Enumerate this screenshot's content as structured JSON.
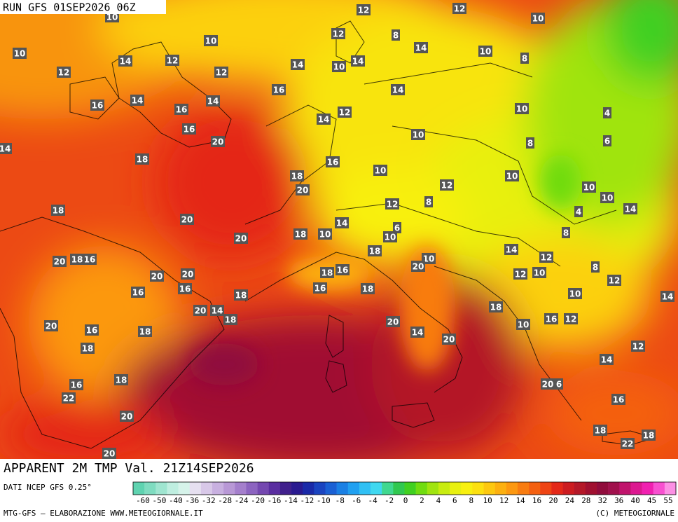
{
  "header": {
    "run": "RUN GFS 01SEP2026 06Z"
  },
  "title": "APPARENT 2M TMP Val. 21Z14SEP2026",
  "footer": {
    "source": "DATI NCEP GFS 0.25°",
    "credit": "MTG-GFS — ELABORAZIONE WWW.METEOGIORNALE.IT",
    "copyright": "(C) METEOGIORNALE"
  },
  "legend": {
    "labels": [
      -60,
      -50,
      -40,
      -36,
      -32,
      -28,
      -24,
      -20,
      -16,
      -14,
      -12,
      -10,
      -8,
      -6,
      -4,
      -2,
      0,
      2,
      4,
      6,
      8,
      10,
      12,
      14,
      16,
      20,
      24,
      28,
      32,
      36,
      40,
      45,
      55
    ],
    "colors": [
      "#5fd3b0",
      "#7fdcc0",
      "#9fe5d0",
      "#bfeee0",
      "#d6f3ea",
      "#e6e0f0",
      "#d8c8e8",
      "#c8b0e0",
      "#b898d6",
      "#a47fcc",
      "#8c64c0",
      "#7448b0",
      "#5a2ea0",
      "#40208c",
      "#2a1a90",
      "#1a2aa8",
      "#1a44c0",
      "#1a60d4",
      "#1a80e4",
      "#20a0f0",
      "#30c0f4",
      "#40d8f0",
      "#40d890",
      "#30c850",
      "#40d020",
      "#70dc10",
      "#a0e410",
      "#c8ec10",
      "#e8f010",
      "#f8f010",
      "#fce010",
      "#fcc810",
      "#fcb010",
      "#fc9810",
      "#f87c10",
      "#f46010",
      "#ee4414",
      "#e42818",
      "#cc1c20",
      "#b41828",
      "#a01030",
      "#900c3c",
      "#a0104c",
      "#c0146c",
      "#dc1890",
      "#f020b0",
      "#f850d0",
      "#fc90e4"
    ]
  },
  "map_labels": [
    10,
    12,
    12,
    10,
    10,
    10,
    12,
    8,
    14,
    10,
    8,
    12,
    14,
    12,
    12,
    14,
    10,
    14,
    16,
    14,
    14,
    16,
    16,
    14,
    10,
    4,
    12,
    14,
    16,
    10,
    8,
    6,
    14,
    20,
    18,
    16,
    10,
    10,
    18,
    20,
    12,
    8,
    10,
    10,
    14,
    18,
    20,
    12,
    4,
    14,
    18,
    10,
    20,
    6,
    10,
    8,
    14,
    12,
    20,
    18,
    16,
    20,
    20,
    18,
    16,
    18,
    10,
    20,
    8,
    12,
    10,
    12,
    16,
    16,
    18,
    16,
    18,
    10,
    14,
    20,
    14,
    18,
    18,
    16,
    12,
    10,
    20,
    16,
    18,
    20,
    14,
    20,
    18,
    12,
    14,
    16,
    18,
    20,
    6,
    22,
    16,
    20,
    18,
    22,
    18,
    20
  ]
}
